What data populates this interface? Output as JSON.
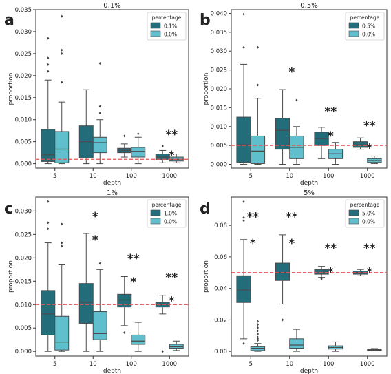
{
  "colors": {
    "dark": "#236c7a",
    "light": "#5fbfcc",
    "outline": "#4a4a4a",
    "ref_line": "#e05555"
  },
  "chart_data": [
    {
      "type": "box",
      "panel_label": "a",
      "title": "0.1%",
      "xlabel": "depth",
      "ylabel": "proportion",
      "categories": [
        "5",
        "10",
        "100",
        "1000"
      ],
      "ylim": [
        -0.001,
        0.035
      ],
      "yticks": [
        0.0,
        0.005,
        0.01,
        0.015,
        0.02,
        0.025,
        0.03,
        0.035
      ],
      "ytick_labels": [
        "0.000",
        "0.005",
        "0.010",
        "0.015",
        "0.020",
        "0.025",
        "0.030",
        "0.035"
      ],
      "reference_line": 0.001,
      "legend": {
        "title": "percentage",
        "position": "top-right"
      },
      "series": [
        {
          "name": "0.1%",
          "color": "dark",
          "boxes": [
            {
              "whislo": 0.0,
              "q1": 0.0005,
              "med": 0.002,
              "q3": 0.0078,
              "whishi": 0.019,
              "fliers": [
                0.0285,
                0.024,
                0.0225,
                0.021
              ]
            },
            {
              "whislo": 0.0,
              "q1": 0.0013,
              "med": 0.005,
              "q3": 0.0086,
              "whishi": 0.0168,
              "fliers": []
            },
            {
              "whislo": 0.0015,
              "q1": 0.0025,
              "med": 0.003,
              "q3": 0.0035,
              "whishi": 0.0045,
              "fliers": [
                0.0063
              ]
            },
            {
              "whislo": 0.0002,
              "q1": 0.0008,
              "med": 0.0015,
              "q3": 0.0022,
              "whishi": 0.003,
              "fliers": [
                0.004
              ]
            }
          ]
        },
        {
          "name": "0.0%",
          "color": "light",
          "boxes": [
            {
              "whislo": 0.0,
              "q1": 0.0002,
              "med": 0.0033,
              "q3": 0.0073,
              "whishi": 0.014,
              "fliers": [
                0.0335,
                0.0258,
                0.025,
                0.0185
              ]
            },
            {
              "whislo": 0.0,
              "q1": 0.0025,
              "med": 0.0048,
              "q3": 0.006,
              "whishi": 0.01,
              "fliers": [
                0.0228,
                0.013,
                0.0115
              ]
            },
            {
              "whislo": 0.0,
              "q1": 0.0015,
              "med": 0.0028,
              "q3": 0.0037,
              "whishi": 0.006,
              "fliers": [
                0.0068
              ]
            },
            {
              "whislo": 0.0002,
              "q1": 0.0006,
              "med": 0.001,
              "q3": 0.0015,
              "whishi": 0.0022,
              "fliers": []
            }
          ]
        }
      ],
      "annotations": [
        {
          "text": "**",
          "category": 3,
          "y": 0.0057
        },
        {
          "text": "*",
          "category": 3,
          "y": 0.001
        }
      ]
    },
    {
      "type": "box",
      "panel_label": "b",
      "title": "0.5%",
      "xlabel": "depth",
      "ylabel": "proportion",
      "categories": [
        "5",
        "10",
        "100",
        "1000"
      ],
      "ylim": [
        -0.001,
        0.041
      ],
      "yticks": [
        0.0,
        0.005,
        0.01,
        0.015,
        0.02,
        0.025,
        0.03,
        0.035,
        0.04
      ],
      "ytick_labels": [
        "0.000",
        "0.005",
        "0.010",
        "0.015",
        "0.020",
        "0.025",
        "0.030",
        "0.035",
        "0.040"
      ],
      "reference_line": 0.005,
      "legend": {
        "title": "percentage",
        "position": "top-right"
      },
      "series": [
        {
          "name": "0.5%",
          "color": "dark",
          "boxes": [
            {
              "whislo": 0.0,
              "q1": 0.0005,
              "med": 0.0052,
              "q3": 0.0125,
              "whishi": 0.0265,
              "fliers": [
                0.0398,
                0.031
              ]
            },
            {
              "whislo": 0.0,
              "q1": 0.004,
              "med": 0.009,
              "q3": 0.0122,
              "whishi": 0.0198,
              "fliers": []
            },
            {
              "whislo": 0.0015,
              "q1": 0.005,
              "med": 0.0068,
              "q3": 0.0085,
              "whishi": 0.0098,
              "fliers": []
            },
            {
              "whislo": 0.004,
              "q1": 0.0045,
              "med": 0.0052,
              "q3": 0.006,
              "whishi": 0.007,
              "fliers": []
            }
          ]
        },
        {
          "name": "0.0%",
          "color": "light",
          "boxes": [
            {
              "whislo": 0.0,
              "q1": 0.0002,
              "med": 0.0035,
              "q3": 0.0075,
              "whishi": 0.0175,
              "fliers": [
                0.031,
                0.021
              ]
            },
            {
              "whislo": 0.0,
              "q1": 0.0015,
              "med": 0.0045,
              "q3": 0.0075,
              "whishi": 0.01,
              "fliers": [
                0.017
              ]
            },
            {
              "whislo": 0.0,
              "q1": 0.0015,
              "med": 0.0028,
              "q3": 0.004,
              "whishi": 0.0058,
              "fliers": []
            },
            {
              "whislo": 0.0002,
              "q1": 0.0005,
              "med": 0.001,
              "q3": 0.0015,
              "whishi": 0.0022,
              "fliers": []
            }
          ]
        }
      ],
      "annotations": [
        {
          "text": "*",
          "category": 1,
          "y": 0.0235
        },
        {
          "text": "**",
          "category": 2,
          "y": 0.013
        },
        {
          "text": "*",
          "category": 2,
          "y": 0.0065
        },
        {
          "text": "**",
          "category": 3,
          "y": 0.0092
        },
        {
          "text": "*",
          "category": 3,
          "y": 0.0033
        }
      ]
    },
    {
      "type": "box",
      "panel_label": "c",
      "title": "1%",
      "xlabel": "depth",
      "ylabel": "proportion",
      "categories": [
        "5",
        "10",
        "100",
        "1000"
      ],
      "ylim": [
        -0.001,
        0.033
      ],
      "yticks": [
        0.0,
        0.005,
        0.01,
        0.015,
        0.02,
        0.025,
        0.03
      ],
      "ytick_labels": [
        "0.000",
        "0.005",
        "0.010",
        "0.015",
        "0.020",
        "0.025",
        "0.030"
      ],
      "reference_line": 0.01,
      "legend": {
        "title": "percentage",
        "position": "top-right"
      },
      "series": [
        {
          "name": "1.0%",
          "color": "dark",
          "boxes": [
            {
              "whislo": 0.0,
              "q1": 0.0035,
              "med": 0.008,
              "q3": 0.013,
              "whishi": 0.0232,
              "fliers": [
                0.032,
                0.0275,
                0.0262
              ]
            },
            {
              "whislo": 0.0,
              "q1": 0.006,
              "med": 0.0105,
              "q3": 0.0145,
              "whishi": 0.0252,
              "fliers": []
            },
            {
              "whislo": 0.0055,
              "q1": 0.0095,
              "med": 0.011,
              "q3": 0.0122,
              "whishi": 0.016,
              "fliers": [
                0.004
              ]
            },
            {
              "whislo": 0.008,
              "q1": 0.0095,
              "med": 0.01,
              "q3": 0.0105,
              "whishi": 0.012,
              "fliers": [
                0.0
              ]
            }
          ]
        },
        {
          "name": "0.0%",
          "color": "light",
          "boxes": [
            {
              "whislo": 0.0,
              "q1": 0.0003,
              "med": 0.002,
              "q3": 0.0075,
              "whishi": 0.0185,
              "fliers": [
                0.0272,
                0.0232,
                0.0225
              ]
            },
            {
              "whislo": 0.0,
              "q1": 0.0025,
              "med": 0.0038,
              "q3": 0.0085,
              "whishi": 0.0175,
              "fliers": [
                0.0188
              ]
            },
            {
              "whislo": 0.0,
              "q1": 0.0015,
              "med": 0.0022,
              "q3": 0.0035,
              "whishi": 0.0062,
              "fliers": []
            },
            {
              "whislo": 0.0002,
              "q1": 0.0007,
              "med": 0.001,
              "q3": 0.0015,
              "whishi": 0.0022,
              "fliers": []
            }
          ]
        }
      ],
      "annotations": [
        {
          "text": "*",
          "category": 1,
          "y": 0.028
        },
        {
          "text": "*",
          "category": 1,
          "y": 0.023
        },
        {
          "text": "**",
          "category": 2,
          "y": 0.019
        },
        {
          "text": "*",
          "category": 2,
          "y": 0.014
        },
        {
          "text": "**",
          "category": 3,
          "y": 0.015
        },
        {
          "text": "*",
          "category": 3,
          "y": 0.01
        }
      ]
    },
    {
      "type": "box",
      "panel_label": "d",
      "title": "5%",
      "xlabel": "depth",
      "ylabel": "proportion",
      "categories": [
        "5",
        "10",
        "100",
        "1000"
      ],
      "ylim": [
        -0.003,
        0.098
      ],
      "yticks": [
        0.0,
        0.02,
        0.04,
        0.06,
        0.08
      ],
      "ytick_labels": [
        "0.00",
        "0.02",
        "0.04",
        "0.06",
        "0.08"
      ],
      "reference_line": 0.05,
      "legend": {
        "title": "percentage",
        "position": "top-right"
      },
      "series": [
        {
          "name": "5.0%",
          "color": "dark",
          "boxes": [
            {
              "whislo": 0.008,
              "q1": 0.031,
              "med": 0.039,
              "q3": 0.048,
              "whishi": 0.071,
              "fliers": [
                0.095,
                0.085,
                0.083,
                0.005
              ]
            },
            {
              "whislo": 0.03,
              "q1": 0.045,
              "med": 0.05,
              "q3": 0.056,
              "whishi": 0.074,
              "fliers": [
                0.02
              ]
            },
            {
              "whislo": 0.047,
              "q1": 0.049,
              "med": 0.051,
              "q3": 0.052,
              "whishi": 0.054,
              "fliers": [
                0.046
              ]
            },
            {
              "whislo": 0.048,
              "q1": 0.049,
              "med": 0.05,
              "q3": 0.051,
              "whishi": 0.052,
              "fliers": []
            }
          ]
        },
        {
          "name": "0.0%",
          "color": "light",
          "boxes": [
            {
              "whislo": 0.0,
              "q1": 0.0005,
              "med": 0.002,
              "q3": 0.003,
              "whishi": 0.005,
              "fliers": [
                0.019,
                0.017,
                0.015,
                0.013,
                0.011,
                0.009,
                0.008,
                0.007
              ]
            },
            {
              "whislo": 0.0,
              "q1": 0.002,
              "med": 0.004,
              "q3": 0.008,
              "whishi": 0.014,
              "fliers": []
            },
            {
              "whislo": 0.0,
              "q1": 0.0015,
              "med": 0.0025,
              "q3": 0.0035,
              "whishi": 0.006,
              "fliers": []
            },
            {
              "whislo": 0.0003,
              "q1": 0.0007,
              "med": 0.001,
              "q3": 0.0013,
              "whishi": 0.0018,
              "fliers": []
            }
          ]
        }
      ],
      "annotations": [
        {
          "text": "**",
          "category": 0,
          "y": 0.083
        },
        {
          "text": "*",
          "category": 0,
          "y": 0.066
        },
        {
          "text": "**",
          "category": 1,
          "y": 0.083
        },
        {
          "text": "*",
          "category": 1,
          "y": 0.066
        },
        {
          "text": "**",
          "category": 2,
          "y": 0.063
        },
        {
          "text": "*",
          "category": 2,
          "y": 0.048
        },
        {
          "text": "**",
          "category": 3,
          "y": 0.063
        },
        {
          "text": "*",
          "category": 3,
          "y": 0.048
        }
      ]
    }
  ]
}
